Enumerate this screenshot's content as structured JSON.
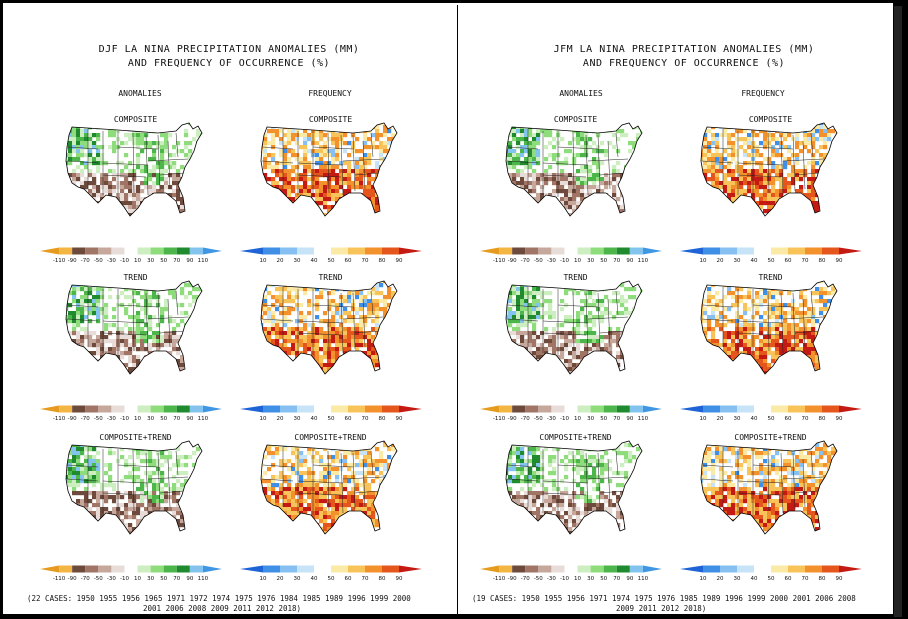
{
  "panels": [
    {
      "title_line1": "DJF LA NINA PRECIPITATION ANOMALIES (MM)",
      "title_line2": "AND FREQUENCY OF OCCURRENCE (%)",
      "col_anomalies": "ANOMALIES",
      "col_frequency": "FREQUENCY",
      "rows": [
        "COMPOSITE",
        "TREND",
        "COMPOSITE+TREND"
      ],
      "cases_line1": "(22 CASES:  1950 1955 1956 1965 1971 1972 1974 1975 1976 1984 1985 1989 1996 1999 2000",
      "cases_line2": "2001 2006 2008 2009 2011 2012 2018)"
    },
    {
      "title_line1": "JFM LA NINA PRECIPITATION ANOMALIES (MM)",
      "title_line2": "AND FREQUENCY OF OCCURRENCE (%)",
      "col_anomalies": "ANOMALIES",
      "col_frequency": "FREQUENCY",
      "rows": [
        "COMPOSITE",
        "TREND",
        "COMPOSITE+TREND"
      ],
      "cases_line1": "(19 CASES:  1950 1955 1956 1971 1974 1975 1976 1985 1989 1996 1999 2000 2001 2006 2008",
      "cases_line2": "2009 2011 2012 2018)"
    }
  ],
  "chart_data": [
    {
      "type": "heatmap",
      "title": "DJF LA NINA PRECIPITATION ANOMALIES (MM) AND FREQUENCY OF OCCURRENCE (%)",
      "maps": [
        {
          "column": "ANOMALIES",
          "row": "COMPOSITE"
        },
        {
          "column": "FREQUENCY",
          "row": "COMPOSITE"
        },
        {
          "column": "ANOMALIES",
          "row": "TREND"
        },
        {
          "column": "FREQUENCY",
          "row": "TREND"
        },
        {
          "column": "ANOMALIES",
          "row": "COMPOSITE+TREND"
        },
        {
          "column": "FREQUENCY",
          "row": "COMPOSITE+TREND"
        }
      ],
      "anomaly_scale": {
        "ticks": [
          "-110",
          "-90",
          "-70",
          "-50",
          "-30",
          "-10",
          "10",
          "30",
          "50",
          "70",
          "90",
          "110"
        ],
        "colors": [
          "#e69b1f",
          "#f4b642",
          "#6e4a3c",
          "#a07565",
          "#c6a79c",
          "#e8dcd8",
          "#ffffff",
          "#cdeec0",
          "#8edc7c",
          "#4cb64a",
          "#1f8a2e",
          "#83c4ef",
          "#3f97e3"
        ]
      },
      "frequency_scale": {
        "ticks": [
          "10",
          "20",
          "30",
          "40",
          "50",
          "60",
          "70",
          "80",
          "90"
        ],
        "colors": [
          "#1e64d6",
          "#3f8fe6",
          "#86bff1",
          "#c7e3f7",
          "#ffffff",
          "#fbeaa6",
          "#f8c45a",
          "#f3912c",
          "#e5561c",
          "#c41a14"
        ]
      }
    },
    {
      "type": "heatmap",
      "title": "JFM LA NINA PRECIPITATION ANOMALIES (MM) AND FREQUENCY OF OCCURRENCE (%)",
      "maps": [
        {
          "column": "ANOMALIES",
          "row": "COMPOSITE"
        },
        {
          "column": "FREQUENCY",
          "row": "COMPOSITE"
        },
        {
          "column": "ANOMALIES",
          "row": "TREND"
        },
        {
          "column": "FREQUENCY",
          "row": "TREND"
        },
        {
          "column": "ANOMALIES",
          "row": "COMPOSITE+TREND"
        },
        {
          "column": "FREQUENCY",
          "row": "COMPOSITE+TREND"
        }
      ],
      "anomaly_scale": {
        "ticks": [
          "-110",
          "-90",
          "-70",
          "-50",
          "-30",
          "-10",
          "10",
          "30",
          "50",
          "70",
          "90",
          "110"
        ],
        "colors": [
          "#e69b1f",
          "#f4b642",
          "#6e4a3c",
          "#a07565",
          "#c6a79c",
          "#e8dcd8",
          "#ffffff",
          "#cdeec0",
          "#8edc7c",
          "#4cb64a",
          "#1f8a2e",
          "#83c4ef",
          "#3f97e3"
        ]
      },
      "frequency_scale": {
        "ticks": [
          "10",
          "20",
          "30",
          "40",
          "50",
          "60",
          "70",
          "80",
          "90"
        ],
        "colors": [
          "#1e64d6",
          "#3f8fe6",
          "#86bff1",
          "#c7e3f7",
          "#ffffff",
          "#fbeaa6",
          "#f8c45a",
          "#f3912c",
          "#e5561c",
          "#c41a14"
        ]
      }
    }
  ]
}
